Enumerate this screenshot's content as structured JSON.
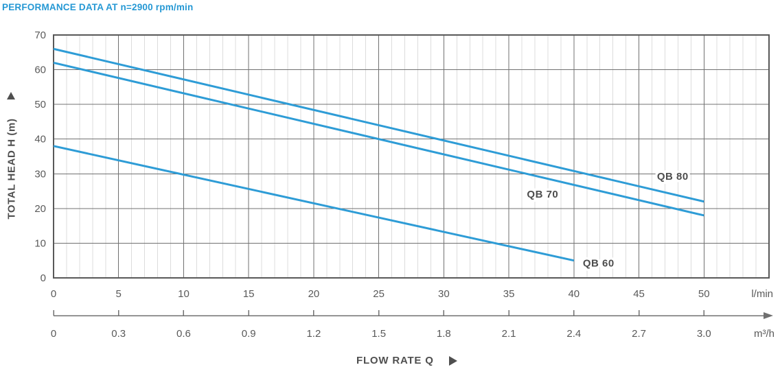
{
  "title": "PERFORMANCE DATA AT n=2900 rpm/min",
  "colors": {
    "title_blue": "#2598D4",
    "curve_blue": "#2E9CD6",
    "grid_major": "#707070",
    "grid_minor": "#DCDCDC",
    "plot_border": "#585858",
    "text_gray": "#595959",
    "label_dark_gray": "#4D4D4D"
  },
  "y_axis": {
    "label": "TOTAL HEAD H (m)"
  },
  "x_axis": {
    "label": "FLOW RATE Q",
    "unit_primary": "l/min",
    "unit_secondary": "m³/h"
  },
  "chart_data": {
    "type": "line",
    "title": "PERFORMANCE DATA AT n=2900 rpm/min",
    "xlabel": "FLOW RATE Q",
    "ylabel": "TOTAL HEAD H (m)",
    "x_unit_primary": "l/min",
    "x_unit_secondary": "m³/h",
    "xlim_lmin": [
      0,
      55
    ],
    "ylim_m": [
      0,
      70
    ],
    "x_major_ticks_lmin": [
      0,
      5,
      10,
      15,
      20,
      25,
      30,
      35,
      40,
      45,
      50
    ],
    "x_minor_step_lmin": 1,
    "y_major_ticks_m": [
      0,
      10,
      20,
      30,
      40,
      50,
      60,
      70
    ],
    "x_secondary_ticks_m3h": [
      "0",
      "0.3",
      "0.6",
      "0.9",
      "1.2",
      "1.5",
      "1.8",
      "2.1",
      "2.4",
      "2.7",
      "3.0"
    ],
    "grid": "x-major+x-minor, y-major only",
    "legend_position": "inline-labels",
    "series": [
      {
        "name": "QB 80",
        "points_lmin_m": [
          [
            0,
            66
          ],
          [
            50,
            22
          ]
        ],
        "label_at_lmin_m": [
          47.6,
          29.3
        ]
      },
      {
        "name": "QB 70",
        "points_lmin_m": [
          [
            0,
            62
          ],
          [
            50,
            18
          ]
        ],
        "label_at_lmin_m": [
          37.6,
          24.1
        ]
      },
      {
        "name": "QB 60",
        "points_lmin_m": [
          [
            0,
            38
          ],
          [
            40,
            5
          ]
        ],
        "label_at_lmin_m": [
          41.9,
          4.3
        ]
      }
    ]
  }
}
